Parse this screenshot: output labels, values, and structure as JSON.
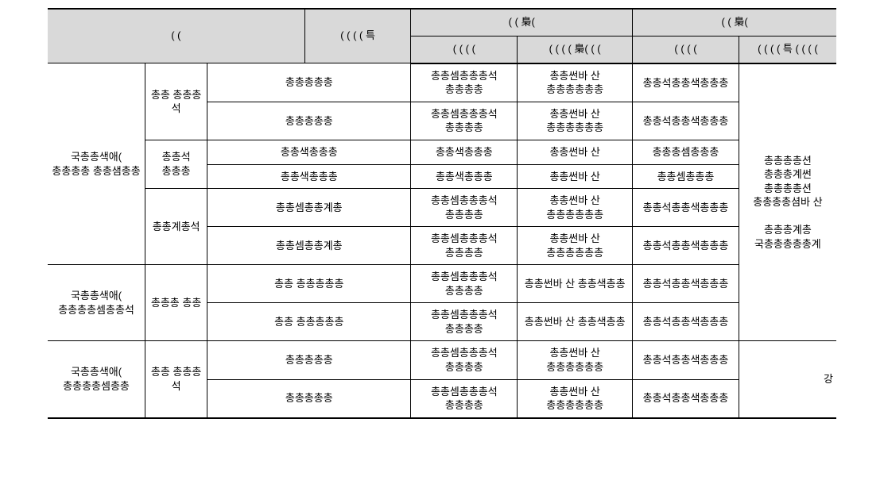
{
  "header": {
    "col1": "( (",
    "col2": "( ( ( ( 특",
    "group1": "( ( 梟(",
    "group2": "( ( 梟(",
    "sub1a": "( ( ( (",
    "sub1b": "( ( ( ( 梟( ( (",
    "sub2a": "( ( ( (",
    "sub2b": "( ( ( ( 특 ( ( ( ("
  },
  "sec1": {
    "label": "국총총색애( 총총총총 총총샘총총",
    "g1": {
      "label": "총총 총총총 석",
      "r1": {
        "c3": "총총총총총",
        "c4": "총총셈총총총석 총총총총",
        "c5": "총총썬바 산 총총총총총총",
        "c6": "총총석총총색총총총"
      },
      "r2": {
        "c3": "총총총총총",
        "c4": "총총셈총총총석 총총총총",
        "c5": "총총썬바 산 총총총총총총",
        "c6": "총총석총총색총총총"
      }
    },
    "g2": {
      "label": "총총석 총총총",
      "r1": {
        "c3": "총총색총총총",
        "c4": "총총색총총총",
        "c5": "총총썬바 산",
        "c6": "총총총셈총총총"
      },
      "r2": {
        "c3": "총총색총총총",
        "c4": "총총색총총총",
        "c5": "총총썬바 산",
        "c6": "총총셈총총총"
      }
    },
    "g3": {
      "label": "총총계총석",
      "r1": {
        "c3": "총총셈총총계총",
        "c4": "총총셈총총총석 총총총총",
        "c5": "총총썬바 산 총총총총총총",
        "c6": "총총석총총색총총총"
      },
      "r2": {
        "c3": "총총셈총총계총",
        "c4": "총총셈총총총석 총총총총",
        "c5": "총총썬바 산 총총총총총총",
        "c6": "총총석총총색총총총"
      }
    }
  },
  "sec2": {
    "label": "국총총색애( 총총총총셈총총석",
    "g1": {
      "label": "총총총 총총",
      "r1": {
        "c3": "총총 총총총총총",
        "c4": "총총셈총총총석 총총총총",
        "c5": "총총썬바 산 총총색총총",
        "c6": "총총석총총색총총총"
      },
      "r2": {
        "c3": "총총 총총총총총",
        "c4": "총총셈총총총석 총총총총",
        "c5": "총총썬바 산 총총색총총",
        "c6": "총총석총총색총총총"
      }
    }
  },
  "sec3": {
    "label": "국총총색애( 총총총총셈총총",
    "g1": {
      "label": "총총 총총총 석",
      "r1": {
        "c3": "총총총총총",
        "c4": "총총셈총총총석 총총총총",
        "c5": "총총썬바 산 총총총총총총",
        "c6": "총총석총총색총총총"
      },
      "r2": {
        "c3": "총총총총총",
        "c4": "총총셈총총총석 총총총총",
        "c5": "총총썬바 산 총총총총총총",
        "c6": "총총석총총색총총총"
      }
    }
  },
  "sidebar": "총총총총션 총총총계썬 총총총총션 총총총총셤바 산\n\n총총총계총 국총총총총총계",
  "footnote": "강",
  "style": {
    "header_bg": "#d9d9d9",
    "border_color": "#000000",
    "font_size": 13
  }
}
